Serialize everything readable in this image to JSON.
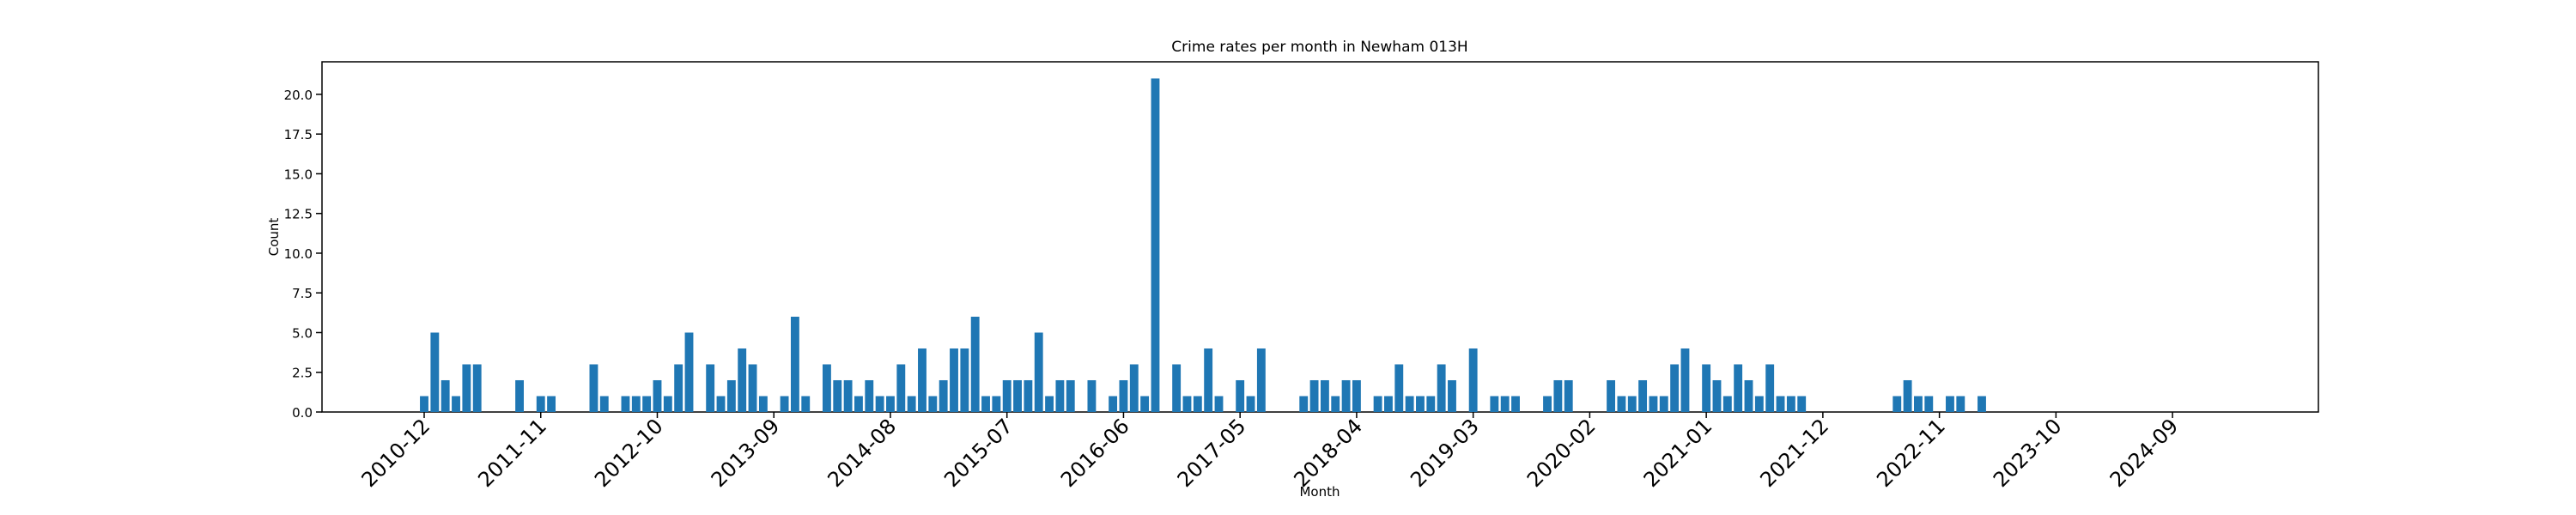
{
  "chart_data": {
    "type": "bar",
    "title": "Crime rates per month in Newham 013H",
    "x_label": "Month",
    "y_label": "Count",
    "color": "#1f77b4",
    "categories": [
      "2010-12",
      null,
      null,
      null,
      null,
      null,
      null,
      null,
      null,
      null,
      null,
      "2011-11",
      null,
      null,
      null,
      null,
      null,
      null,
      null,
      null,
      null,
      null,
      "2012-10",
      null,
      null,
      null,
      null,
      null,
      null,
      null,
      null,
      null,
      null,
      "2013-09",
      null,
      null,
      null,
      null,
      null,
      null,
      null,
      null,
      null,
      null,
      "2014-08",
      null,
      null,
      null,
      null,
      null,
      null,
      null,
      null,
      null,
      null,
      "2015-07",
      null,
      null,
      null,
      null,
      null,
      null,
      null,
      null,
      null,
      null,
      "2016-06",
      null,
      null,
      null,
      null,
      null,
      null,
      null,
      null,
      null,
      null,
      "2017-05",
      null,
      null,
      null,
      null,
      null,
      null,
      null,
      null,
      null,
      null,
      "2018-04",
      null,
      null,
      null,
      null,
      null,
      null,
      null,
      null,
      null,
      null,
      "2019-03",
      null,
      null,
      null,
      null,
      null,
      null,
      null,
      null,
      null,
      null,
      "2020-02",
      null,
      null,
      null,
      null,
      null,
      null,
      null,
      null,
      null,
      null,
      "2021-01",
      null,
      null,
      null,
      null,
      null,
      null,
      null,
      null,
      null,
      null,
      "2021-12",
      null,
      null,
      null,
      null,
      null,
      null,
      null,
      null,
      null,
      null,
      "2022-11",
      null,
      null,
      null,
      null,
      null,
      null,
      null,
      null,
      null,
      null,
      "2023-10",
      null,
      null,
      null,
      null,
      null,
      null,
      null,
      null,
      null,
      null,
      "2024-09",
      null,
      null,
      null,
      null
    ],
    "values": [
      1,
      5,
      2,
      1,
      3,
      3,
      0,
      0,
      0,
      2,
      0,
      1,
      1,
      0,
      0,
      0,
      3,
      1,
      0,
      1,
      1,
      1,
      2,
      1,
      3,
      5,
      0,
      3,
      1,
      2,
      4,
      3,
      1,
      0,
      1,
      6,
      1,
      0,
      3,
      2,
      2,
      1,
      2,
      1,
      1,
      3,
      1,
      4,
      1,
      2,
      4,
      4,
      6,
      1,
      1,
      2,
      2,
      2,
      5,
      1,
      2,
      2,
      0,
      2,
      0,
      1,
      2,
      3,
      1,
      21,
      0,
      3,
      1,
      1,
      4,
      1,
      0,
      2,
      1,
      4,
      0,
      0,
      0,
      1,
      2,
      2,
      1,
      2,
      2,
      0,
      1,
      1,
      3,
      1,
      1,
      1,
      3,
      2,
      0,
      4,
      0,
      1,
      1,
      1,
      0,
      0,
      1,
      2,
      2,
      0,
      0,
      0,
      2,
      1,
      1,
      2,
      1,
      1,
      3,
      4,
      0,
      3,
      2,
      1,
      3,
      2,
      1,
      3,
      1,
      1,
      1,
      0,
      0,
      0,
      0,
      0,
      0,
      0,
      0,
      1,
      2,
      1,
      1,
      0,
      1,
      1,
      0,
      1,
      0,
      0,
      0,
      0,
      0,
      0,
      0,
      0,
      0,
      0,
      0,
      0,
      0,
      0,
      0,
      0,
      0,
      0,
      0,
      0,
      0,
      0
    ],
    "ylim": [
      0,
      22.05
    ],
    "yticks": [
      {
        "value": 0,
        "label": "0.0"
      },
      {
        "value": 2.5,
        "label": "2.5"
      },
      {
        "value": 5,
        "label": "5.0"
      },
      {
        "value": 7.5,
        "label": "7.5"
      },
      {
        "value": 10,
        "label": "10.0"
      },
      {
        "value": 12.5,
        "label": "12.5"
      },
      {
        "value": 15,
        "label": "15.0"
      },
      {
        "value": 17.5,
        "label": "17.5"
      },
      {
        "value": 20,
        "label": "20.0"
      }
    ]
  }
}
